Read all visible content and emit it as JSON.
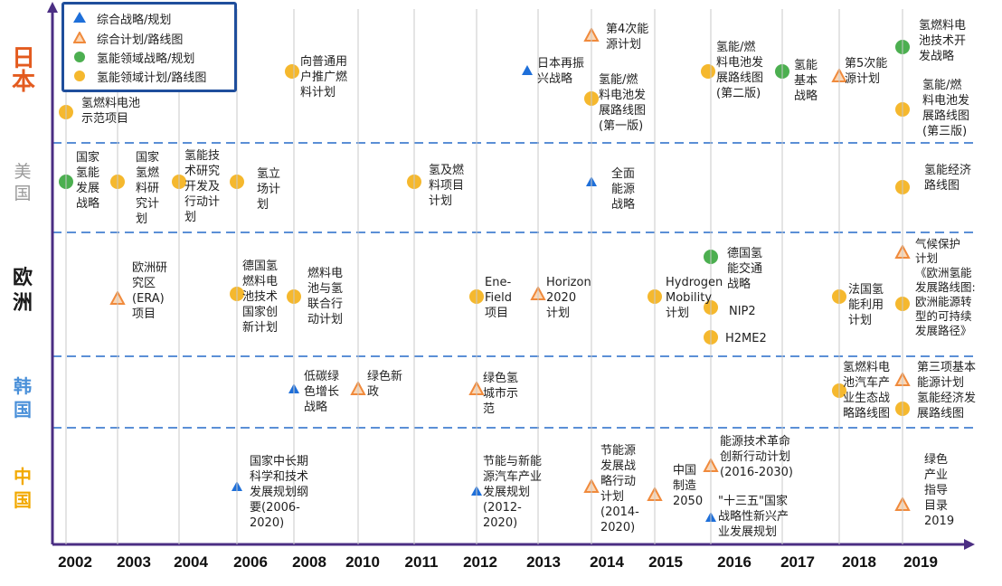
{
  "legend": {
    "items": [
      {
        "symbol": "triangle-blue",
        "label": "综合战略/规划"
      },
      {
        "symbol": "triangle-orange",
        "label": "综合计划/路线图"
      },
      {
        "symbol": "circle-green",
        "label": "氢能领域战略/规划"
      },
      {
        "symbol": "circle-yellow",
        "label": "氢能领域计划/路线图"
      }
    ]
  },
  "rows": [
    {
      "label": "日本",
      "color": "#e35b1f"
    },
    {
      "label": "美国",
      "color": "#9a9a9a"
    },
    {
      "label": "欧洲",
      "color": "#1a1a1a"
    },
    {
      "label": "韩国",
      "color": "#4a90d9"
    },
    {
      "label": "中国",
      "color": "#f2a900"
    }
  ],
  "years": [
    "2002",
    "2003",
    "2004",
    "2006",
    "2008",
    "2010",
    "2011",
    "2012",
    "2013",
    "2014",
    "2015",
    "2016",
    "2017",
    "2018",
    "2019"
  ],
  "notes": [
    "氢燃料电池\n示范项目",
    "向普通用\n户推广燃\n料计划",
    "日本再振\n兴战略",
    "第4次能\n源计划",
    "氢能/燃\n料电池发\n展路线图\n(第一版)",
    "氢能/燃\n料电池发\n展路线图\n(第二版)",
    "氢能\n基本\n战略",
    "第5次能\n源计划",
    "氢燃料电\n池技术开\n发战略",
    "氢能/燃\n料电池发\n展路线图\n(第三版)",
    "国家\n氢能\n发展\n战略",
    "国家\n氢燃\n料研\n究计\n划",
    "氢能技\n术研究\n开发及\n行动计\n划",
    "氢立\n场计\n划",
    "氢及燃\n料项目\n计划",
    "全面\n能源\n战略",
    "氢能经济\n路线图",
    "欧洲研\n究区\n(ERA)\n项目",
    "德国氢\n燃料电\n池技术\n国家创\n新计划",
    "燃料电\n池与氢\n联合行\n动计划",
    "Ene-\nField\n项目",
    "Horizon\n2020\n计划",
    "Hydrogen\nMobility\n计划",
    "德国氢\n能交通\n战略",
    "NIP2",
    "H2ME2",
    "法国氢\n能利用\n计划",
    "气候保护\n计划\n《欧洲氢能\n发展路线图:\n欧洲能源转\n型的可持续\n发展路径》",
    "低碳绿\n色增长\n战略",
    "绿色新\n政",
    "绿色氢\n城市示\n范",
    "氢燃料电\n池汽车产\n业生态战\n略路线图",
    "第三项基本\n能源计划\n氢能经济发\n展路线图",
    "国家中长期\n科学和技术\n发展规划纲\n要(2006-\n2020)",
    "节能与新能\n源汽车产业\n发展规划\n(2012-\n2020)",
    "节能源\n发展战\n略行动\n计划\n(2014-\n2020)",
    "中国\n制造\n2050",
    "能源技术革命\n创新行动计划\n(2016-2030)",
    "\"十三五\"国家\n战略性新兴产\n业发展规划",
    "绿色\n产业\n指导\n目录\n2019"
  ],
  "colors": {
    "axis": "#4b2e83",
    "divider": "#5b8fd6",
    "triangle_blue": "#1e6fd9",
    "triangle_orange": "#f08a3c",
    "circle_green": "#4caf50",
    "circle_yellow": "#f5b82e",
    "legend_border": "#1f4e9c"
  }
}
